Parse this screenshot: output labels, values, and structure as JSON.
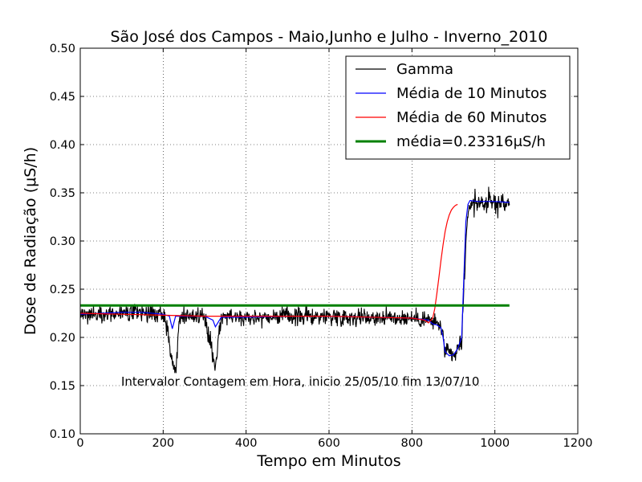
{
  "chart_data": {
    "type": "line",
    "title": "São José dos Campos - Maio,Junho e Julho - Inverno_2010",
    "xlabel": "Tempo em Minutos",
    "ylabel": "Dose de Radiação (μS/h)",
    "xlim": [
      0,
      1200
    ],
    "ylim": [
      0.1,
      0.5
    ],
    "xticks": [
      0,
      200,
      400,
      600,
      800,
      1000,
      1200
    ],
    "xtick_labels": [
      "0",
      "200",
      "400",
      "600",
      "800",
      "1000",
      "1200"
    ],
    "yticks": [
      0.1,
      0.15,
      0.2,
      0.25,
      0.3,
      0.35,
      0.4,
      0.45,
      0.5
    ],
    "ytick_labels": [
      "0.10",
      "0.15",
      "0.20",
      "0.25",
      "0.30",
      "0.35",
      "0.40",
      "0.45",
      "0.50"
    ],
    "grid": true,
    "legend_position": "top-right",
    "annotation": "Intervalor Contagem em Hora, inicio 25/05/10 fim 13/07/10",
    "colors": {
      "gamma": "#000000",
      "media10": "#0000ff",
      "media60": "#ff0000",
      "mean": "#008000"
    },
    "series": [
      {
        "name": "Gamma",
        "kind": "raw",
        "x_start": 0,
        "x_end": 1035,
        "values_approx": [
          [
            0,
            0.224
          ],
          [
            50,
            0.225
          ],
          [
            100,
            0.224
          ],
          [
            150,
            0.226
          ],
          [
            200,
            0.224
          ],
          [
            230,
            0.165
          ],
          [
            240,
            0.223
          ],
          [
            300,
            0.222
          ],
          [
            326,
            0.17
          ],
          [
            340,
            0.222
          ],
          [
            400,
            0.221
          ],
          [
            500,
            0.222
          ],
          [
            600,
            0.222
          ],
          [
            700,
            0.221
          ],
          [
            800,
            0.22
          ],
          [
            840,
            0.218
          ],
          [
            870,
            0.212
          ],
          [
            880,
            0.185
          ],
          [
            900,
            0.18
          ],
          [
            920,
            0.195
          ],
          [
            930,
            0.3
          ],
          [
            940,
            0.34
          ],
          [
            1000,
            0.34
          ],
          [
            1035,
            0.338
          ]
        ],
        "spikes": [
          {
            "x": 231,
            "y": 0.163
          },
          {
            "x": 326,
            "y": 0.17
          },
          {
            "x": 905,
            "y": 0.176
          }
        ]
      },
      {
        "name": "Média de 10 Minutos",
        "kind": "smooth",
        "x": [
          0,
          100,
          150,
          200,
          215,
          222,
          230,
          300,
          320,
          326,
          340,
          400,
          500,
          600,
          700,
          800,
          840,
          850,
          860,
          870,
          875,
          880,
          890,
          900,
          910,
          920,
          925,
          930,
          935,
          940,
          960,
          1000,
          1035
        ],
        "values": [
          0.224,
          0.226,
          0.226,
          0.224,
          0.222,
          0.209,
          0.222,
          0.222,
          0.218,
          0.211,
          0.221,
          0.221,
          0.222,
          0.222,
          0.221,
          0.22,
          0.218,
          0.214,
          0.213,
          0.21,
          0.2,
          0.185,
          0.181,
          0.182,
          0.188,
          0.2,
          0.26,
          0.32,
          0.338,
          0.342,
          0.341,
          0.341,
          0.34
        ]
      },
      {
        "name": "Média de 60 Minutos",
        "kind": "smooth",
        "x": [
          0,
          100,
          200,
          300,
          400,
          500,
          600,
          700,
          800,
          830,
          840,
          850,
          855,
          860,
          865,
          870,
          875,
          880,
          885,
          890,
          895,
          900,
          905,
          910
        ],
        "values": [
          0.225,
          0.224,
          0.223,
          0.222,
          0.222,
          0.222,
          0.222,
          0.221,
          0.22,
          0.218,
          0.215,
          0.22,
          0.23,
          0.245,
          0.262,
          0.28,
          0.296,
          0.31,
          0.32,
          0.327,
          0.332,
          0.335,
          0.337,
          0.338
        ]
      },
      {
        "name": "média=0.23316μS/h",
        "kind": "mean",
        "x": [
          0,
          1035
        ],
        "values": [
          0.23316,
          0.23316
        ]
      }
    ],
    "legend": {
      "items": [
        {
          "label": "Gamma",
          "series": "gamma"
        },
        {
          "label": "Média de 10 Minutos",
          "series": "media10"
        },
        {
          "label": "Média de 60 Minutos",
          "series": "media60"
        },
        {
          "label": "média=0.23316μS/h",
          "series": "mean"
        }
      ]
    }
  }
}
